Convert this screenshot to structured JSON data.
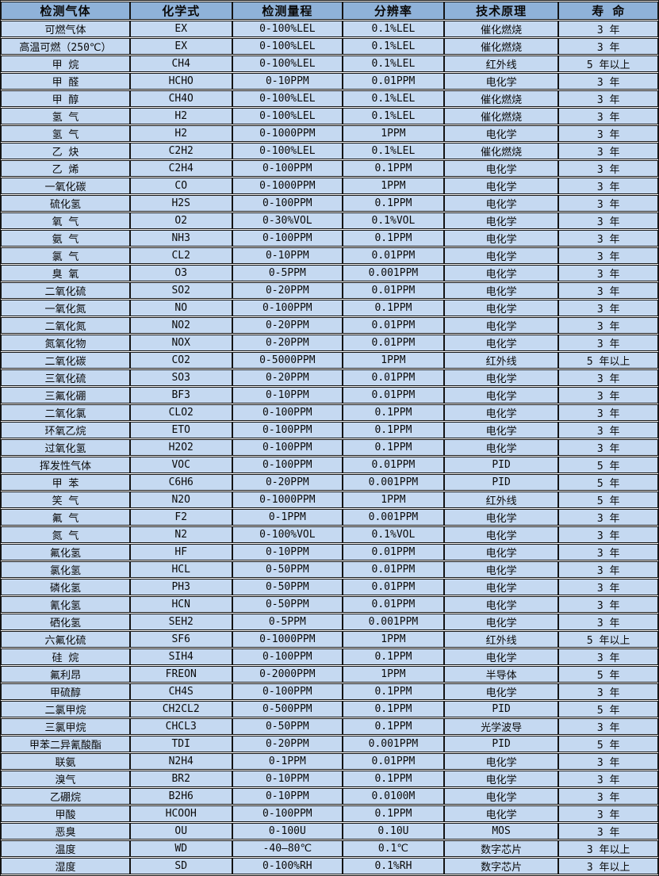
{
  "chart_data": {
    "type": "table",
    "title": "",
    "columns": [
      "检测气体",
      "化学式",
      "检测量程",
      "分辨率",
      "技术原理",
      "寿 命"
    ],
    "column_keys": [
      "gas",
      "formula",
      "range",
      "resolution",
      "principle",
      "lifespan"
    ],
    "rows": [
      [
        "可燃气体",
        "EX",
        "0-100%LEL",
        "0.1%LEL",
        "催化燃烧",
        "3 年"
      ],
      [
        "高温可燃（250℃）",
        "EX",
        "0-100%LEL",
        "0.1%LEL",
        "催化燃烧",
        "3 年"
      ],
      [
        "甲 烷",
        "CH4",
        "0-100%LEL",
        "0.1%LEL",
        "红外线",
        "5 年以上"
      ],
      [
        "甲 醛",
        "HCHO",
        "0-10PPM",
        "0.01PPM",
        "电化学",
        "3 年"
      ],
      [
        "甲 醇",
        "CH4O",
        "0-100%LEL",
        "0.1%LEL",
        "催化燃烧",
        "3 年"
      ],
      [
        "氢 气",
        "H2",
        "0-100%LEL",
        "0.1%LEL",
        "催化燃烧",
        "3 年"
      ],
      [
        "氢 气",
        "H2",
        "0-1000PPM",
        "1PPM",
        "电化学",
        "3 年"
      ],
      [
        "乙 炔",
        "C2H2",
        "0-100%LEL",
        "0.1%LEL",
        "催化燃烧",
        "3 年"
      ],
      [
        "乙 烯",
        "C2H4",
        "0-100PPM",
        "0.1PPM",
        "电化学",
        "3 年"
      ],
      [
        "一氧化碳",
        "CO",
        "0-1000PPM",
        "1PPM",
        "电化学",
        "3 年"
      ],
      [
        "硫化氢",
        "H2S",
        "0-100PPM",
        "0.1PPM",
        "电化学",
        "3 年"
      ],
      [
        "氧 气",
        "O2",
        "0-30%VOL",
        "0.1%VOL",
        "电化学",
        "3 年"
      ],
      [
        "氨 气",
        "NH3",
        "0-100PPM",
        "0.1PPM",
        "电化学",
        "3 年"
      ],
      [
        "氯 气",
        "CL2",
        "0-10PPM",
        "0.01PPM",
        "电化学",
        "3 年"
      ],
      [
        "臭 氧",
        "O3",
        "0-5PPM",
        "0.001PPM",
        "电化学",
        "3 年"
      ],
      [
        "二氧化硫",
        "SO2",
        "0-20PPM",
        "0.01PPM",
        "电化学",
        "3 年"
      ],
      [
        "一氧化氮",
        "NO",
        "0-100PPM",
        "0.1PPM",
        "电化学",
        "3 年"
      ],
      [
        "二氧化氮",
        "NO2",
        "0-20PPM",
        "0.01PPM",
        "电化学",
        "3 年"
      ],
      [
        "氮氧化物",
        "NOX",
        "0-20PPM",
        "0.01PPM",
        "电化学",
        "3 年"
      ],
      [
        "二氧化碳",
        "CO2",
        "0-5000PPM",
        "1PPM",
        "红外线",
        "5 年以上"
      ],
      [
        "三氧化硫",
        "SO3",
        "0-20PPM",
        "0.01PPM",
        "电化学",
        "3 年"
      ],
      [
        "三氟化硼",
        "BF3",
        "0-10PPM",
        "0.01PPM",
        "电化学",
        "3 年"
      ],
      [
        "二氧化氯",
        "CLO2",
        "0-100PPM",
        "0.1PPM",
        "电化学",
        "3 年"
      ],
      [
        "环氧乙烷",
        "ETO",
        "0-100PPM",
        "0.1PPM",
        "电化学",
        "3 年"
      ],
      [
        "过氧化氢",
        "H2O2",
        "0-100PPM",
        "0.1PPM",
        "电化学",
        "3 年"
      ],
      [
        "挥发性气体",
        "VOC",
        "0-100PPM",
        "0.01PPM",
        "PID",
        "5 年"
      ],
      [
        "甲 苯",
        "C6H6",
        "0-20PPM",
        "0.001PPM",
        "PID",
        "5 年"
      ],
      [
        "笑 气",
        "N2O",
        "0-1000PPM",
        "1PPM",
        "红外线",
        "5 年"
      ],
      [
        "氟 气",
        "F2",
        "0-1PPM",
        "0.001PPM",
        "电化学",
        "3 年"
      ],
      [
        "氮 气",
        "N2",
        "0-100%VOL",
        "0.1%VOL",
        "电化学",
        "3 年"
      ],
      [
        "氟化氢",
        "HF",
        "0-10PPM",
        "0.01PPM",
        "电化学",
        "3 年"
      ],
      [
        "氯化氢",
        "HCL",
        "0-50PPM",
        "0.01PPM",
        "电化学",
        "3 年"
      ],
      [
        "磷化氢",
        "PH3",
        "0-50PPM",
        "0.01PPM",
        "电化学",
        "3 年"
      ],
      [
        "氰化氢",
        "HCN",
        "0-50PPM",
        "0.01PPM",
        "电化学",
        "3 年"
      ],
      [
        "硒化氢",
        "SEH2",
        "0-5PPM",
        "0.001PPM",
        "电化学",
        "3 年"
      ],
      [
        "六氟化硫",
        "SF6",
        "0-1000PPM",
        "1PPM",
        "红外线",
        "5 年以上"
      ],
      [
        "硅 烷",
        "SIH4",
        "0-100PPM",
        "0.1PPM",
        "电化学",
        "3 年"
      ],
      [
        "氟利昂",
        "FREON",
        "0-2000PPM",
        "1PPM",
        "半导体",
        "5 年"
      ],
      [
        "甲硫醇",
        "CH4S",
        "0-100PPM",
        "0.1PPM",
        "电化学",
        "3 年"
      ],
      [
        "二氯甲烷",
        "CH2CL2",
        "0-500PPM",
        "0.1PPM",
        "PID",
        "5 年"
      ],
      [
        "三氯甲烷",
        "CHCL3",
        "0-50PPM",
        "0.1PPM",
        "光学波导",
        "3 年"
      ],
      [
        "甲苯二异氰酸酯",
        "TDI",
        "0-20PPM",
        "0.001PPM",
        "PID",
        "5 年"
      ],
      [
        "联氨",
        "N2H4",
        "0-1PPM",
        "0.01PPM",
        "电化学",
        "3 年"
      ],
      [
        "溴气",
        "BR2",
        "0-10PPM",
        "0.1PPM",
        "电化学",
        "3 年"
      ],
      [
        "乙硼烷",
        "B2H6",
        "0-10PPM",
        "0.0100M",
        "电化学",
        "3 年"
      ],
      [
        "甲酸",
        "HCOOH",
        "0-100PPM",
        "0.1PPM",
        "电化学",
        "3 年"
      ],
      [
        "恶臭",
        "OU",
        "0-100U",
        "0.10U",
        "MOS",
        "3 年"
      ],
      [
        "温度",
        "WD",
        "-40—80℃",
        "0.1℃",
        "数字芯片",
        "3 年以上"
      ],
      [
        "湿度",
        "SD",
        "0-100%RH",
        "0.1%RH",
        "数字芯片",
        "3 年以上"
      ]
    ],
    "layout": {
      "grid": "on",
      "header_position": "top",
      "text_align": "center"
    },
    "colors": {
      "header_bg": "#8fb2d9",
      "row_bg": "#c5d9f1",
      "border": "#141414",
      "text": "#0a0a0a",
      "hairline": "#ffffff"
    }
  }
}
